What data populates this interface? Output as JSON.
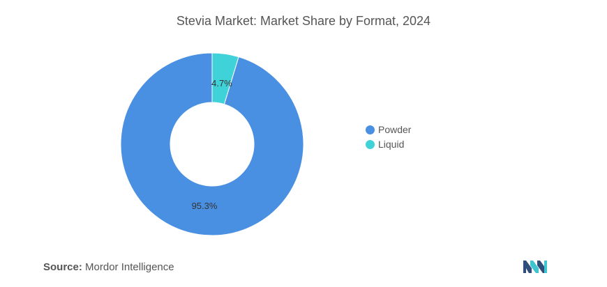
{
  "chart_data": {
    "type": "pie",
    "donut": true,
    "title": "Stevia Market: Market Share by Format, 2024",
    "slices": [
      {
        "label": "Powder",
        "value": 95.3,
        "value_label": "95.3%",
        "color": "#4a90e2"
      },
      {
        "label": "Liquid",
        "value": 4.7,
        "value_label": "4.7%",
        "color": "#40d2d9"
      }
    ],
    "legend_position": "right"
  },
  "source": {
    "prefix": "Source:",
    "text": "Mordor Intelligence"
  },
  "logo_icon": "mordor-intelligence-logo"
}
